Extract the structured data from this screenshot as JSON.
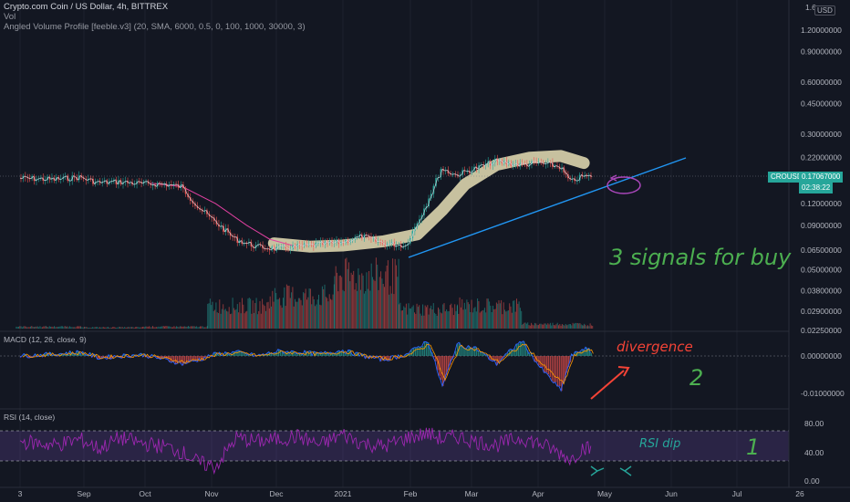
{
  "header": {
    "line1": "Crypto.com Coin / US Dollar, 4h, BITTREX",
    "line2": "Vol",
    "line3": "Angled Volume Profile [feeble.v3] (20, SMA, 6000, 0.5, 0, 100, 1000, 30000, 3)"
  },
  "currency_badge": "USD",
  "price_axis_top": "1.6",
  "symbol_tag": "CROUSD",
  "last_price": "0.17067000",
  "countdown": "02:38:22",
  "macd_title": "MACD (12, 26, close, 9)",
  "rsi_title": "RSI (14, close)",
  "annotations": {
    "signals": "3 signals for buy",
    "divergence": "divergence",
    "two": "2",
    "rsi_dip": "RSI dip",
    "one": "1"
  },
  "colors": {
    "up": "#26a69a",
    "down": "#ef5350",
    "rsi": "#9c27b0",
    "band": "#e8dfb5",
    "trendline": "#2196f3",
    "annot_green": "#4caf50",
    "annot_red": "#f44336",
    "annot_teal": "#26a69a"
  },
  "chart_data": [
    {
      "type": "line",
      "panel": "price",
      "scale": "log",
      "y_ticks": [
        "1.20000000",
        "0.90000000",
        "0.60000000",
        "0.45000000",
        "0.30000000",
        "0.22000000",
        "0.12000000",
        "0.09000000",
        "0.06500000",
        "0.05000000",
        "0.03800000",
        "0.02900000",
        "0.02250000"
      ],
      "x_ticks": [
        "3",
        "Sep",
        "Oct",
        "Nov",
        "Dec",
        "2021",
        "Feb",
        "Mar",
        "Apr",
        "May",
        "Jun",
        "Jul",
        "26"
      ],
      "x": [
        "2020-08-03",
        "2020-08-20",
        "2020-09-01",
        "2020-09-10",
        "2020-09-20",
        "2020-10-01",
        "2020-10-12",
        "2020-10-20",
        "2020-10-28",
        "2020-11-05",
        "2020-11-15",
        "2020-11-25",
        "2020-12-05",
        "2020-12-15",
        "2020-12-25",
        "2021-01-05",
        "2021-01-15",
        "2021-01-25",
        "2021-02-05",
        "2021-02-15",
        "2021-02-22",
        "2021-03-01",
        "2021-03-10",
        "2021-03-20",
        "2021-04-01",
        "2021-04-10",
        "2021-04-20",
        "2021-04-25",
        "2021-05-01",
        "2021-05-05"
      ],
      "close": [
        0.168,
        0.165,
        0.17,
        0.158,
        0.16,
        0.156,
        0.155,
        0.15,
        0.115,
        0.095,
        0.075,
        0.068,
        0.066,
        0.068,
        0.07,
        0.072,
        0.078,
        0.071,
        0.069,
        0.12,
        0.19,
        0.175,
        0.19,
        0.21,
        0.2,
        0.205,
        0.195,
        0.16,
        0.172,
        0.1707
      ],
      "last_price": 0.17067
    },
    {
      "type": "bar",
      "panel": "volume",
      "note": "relative volume heights 0-1",
      "x": [
        "2020-08",
        "2020-09",
        "2020-10",
        "2020-11",
        "2020-12",
        "2021-01",
        "2021-02",
        "2021-03",
        "2021-04",
        "2021-05"
      ],
      "values": [
        0.03,
        0.02,
        0.03,
        0.35,
        0.5,
        0.8,
        0.3,
        0.35,
        0.07,
        0.06
      ]
    },
    {
      "type": "line",
      "panel": "macd",
      "y_ticks": [
        "0.00000000",
        "-0.01000000"
      ],
      "series": [
        {
          "values": [
            0.0,
            0.0005,
            0.001,
            -0.0005,
            0.0,
            0.0003,
            -0.001,
            -0.002,
            -0.001,
            0.0005,
            0.001,
            0.0,
            0.0012,
            0.001,
            0.0005,
            0.0015,
            0.0,
            -0.001,
            0.0005,
            0.004,
            -0.008,
            0.003,
            0.002,
            -0.002,
            0.004,
            -0.003,
            -0.009,
            0.0,
            0.002,
            0.001
          ]
        }
      ]
    },
    {
      "type": "line",
      "panel": "rsi",
      "y_ticks": [
        "80.00",
        "40.00",
        "0.00"
      ],
      "band": [
        30,
        70
      ],
      "series": [
        {
          "values": [
            55,
            50,
            58,
            45,
            60,
            52,
            48,
            40,
            25,
            20,
            60,
            55,
            58,
            62,
            50,
            65,
            52,
            48,
            60,
            66,
            58,
            62,
            55,
            50,
            60,
            52,
            38,
            30,
            48,
            42
          ]
        }
      ]
    }
  ]
}
